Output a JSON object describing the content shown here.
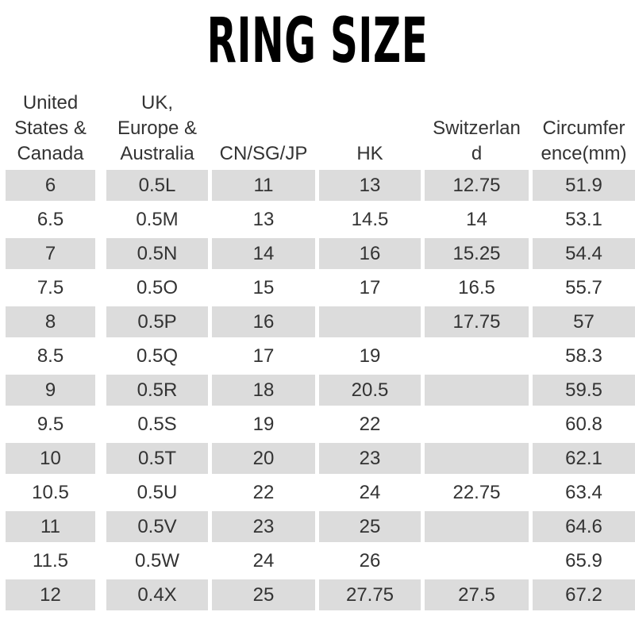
{
  "title": "RING SIZE",
  "columns": [
    "United\nStates &\nCanada",
    "UK,\nEurope &\nAustralia",
    "CN/SG/JP",
    "HK",
    "Switzerlan\nd",
    "Circumfer\nence(mm)"
  ],
  "rows": [
    [
      "6",
      "0.5L",
      "11",
      "13",
      "12.75",
      "51.9"
    ],
    [
      "6.5",
      "0.5M",
      "13",
      "14.5",
      "14",
      "53.1"
    ],
    [
      "7",
      "0.5N",
      "14",
      "16",
      "15.25",
      "54.4"
    ],
    [
      "7.5",
      "0.5O",
      "15",
      "17",
      "16.5",
      "55.7"
    ],
    [
      "8",
      "0.5P",
      "16",
      "",
      "17.75",
      "57"
    ],
    [
      "8.5",
      "0.5Q",
      "17",
      "19",
      "",
      "58.3"
    ],
    [
      "9",
      "0.5R",
      "18",
      "20.5",
      "",
      "59.5"
    ],
    [
      "9.5",
      "0.5S",
      "19",
      "22",
      "",
      "60.8"
    ],
    [
      "10",
      "0.5T",
      "20",
      "23",
      "",
      "62.1"
    ],
    [
      "10.5",
      "0.5U",
      "22",
      "24",
      "22.75",
      "63.4"
    ],
    [
      "11",
      "0.5V",
      "23",
      "25",
      "",
      "64.6"
    ],
    [
      "11.5",
      "0.5W",
      "24",
      "26",
      "",
      "65.9"
    ],
    [
      "12",
      "0.4X",
      "25",
      "27.75",
      "27.5",
      "67.2"
    ]
  ],
  "colors": {
    "shaded_row": "#dcdcdc",
    "text": "#333333",
    "title": "#000000"
  }
}
